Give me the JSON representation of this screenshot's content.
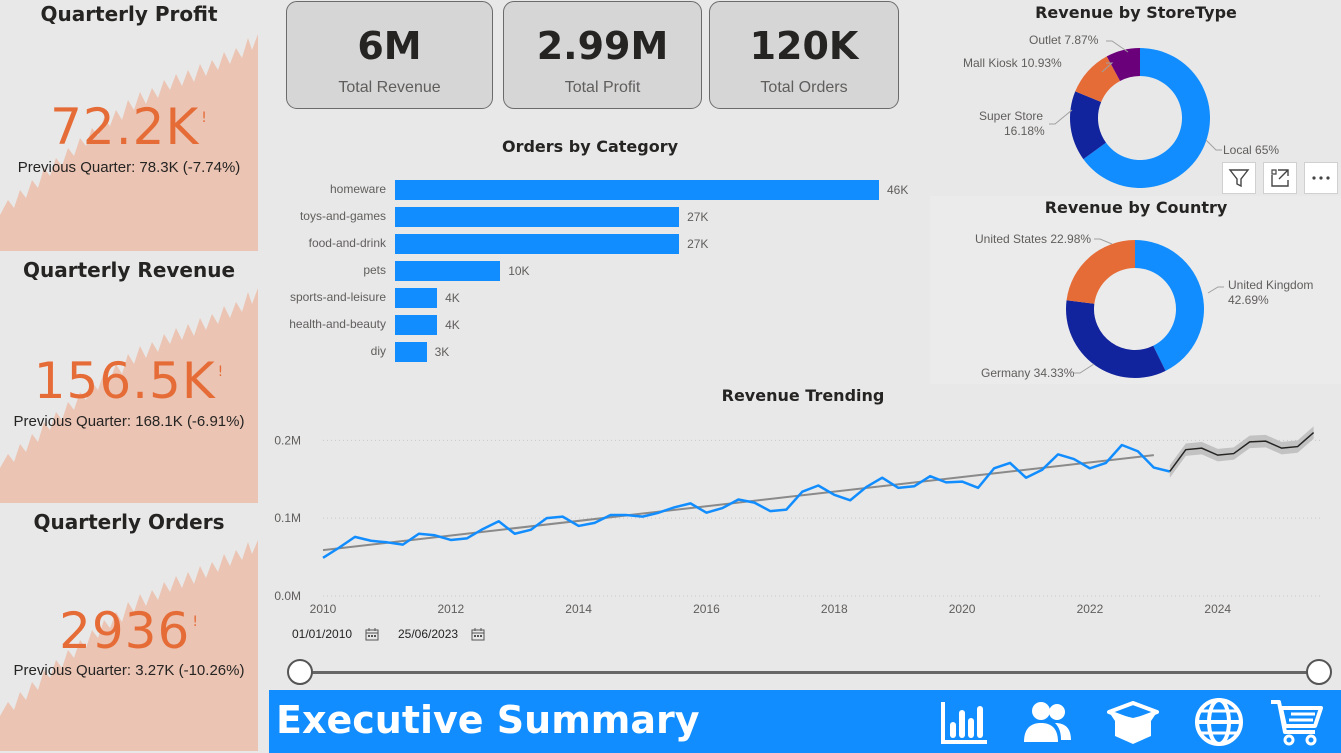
{
  "kpis": [
    {
      "title": "Quarterly Profit",
      "value": "72.2K",
      "indicator": "!",
      "previous": "Previous Quarter: 78.3K (-7.74%)"
    },
    {
      "title": "Quarterly Revenue",
      "value": "156.5K",
      "indicator": "!",
      "previous": "Previous Quarter: 168.1K (-6.91%)"
    },
    {
      "title": "Quarterly Orders",
      "value": "2936",
      "indicator": "!",
      "previous": "Previous Quarter: 3.27K (-10.26%)"
    }
  ],
  "cards": [
    {
      "value": "6M",
      "label": "Total Revenue"
    },
    {
      "value": "2.99M",
      "label": "Total Profit"
    },
    {
      "value": "120K",
      "label": "Total Orders"
    }
  ],
  "footer": {
    "title": "Executive Summary",
    "nav_icons": [
      "bar-chart-icon",
      "users-icon",
      "box-icon",
      "globe-icon",
      "cart-icon"
    ]
  },
  "date_range": {
    "start": "01/01/2010",
    "end": "25/06/2023"
  },
  "colors": {
    "accent": "#118DFF",
    "kpi_orange": "#E66C37",
    "spark_fill": "#EBC4B3",
    "navy": "#12239E",
    "purple": "#6B007B",
    "forecast_band": "#b8b8b8"
  },
  "chart_data": [
    {
      "type": "bar",
      "orientation": "horizontal",
      "title": "Orders by Category",
      "categories": [
        "homeware",
        "toys-and-games",
        "food-and-drink",
        "pets",
        "sports-and-leisure",
        "health-and-beauty",
        "diy"
      ],
      "values": [
        46000,
        27000,
        27000,
        10000,
        4000,
        4000,
        3000
      ],
      "data_labels": [
        "46K",
        "27K",
        "27K",
        "10K",
        "4K",
        "4K",
        "3K"
      ],
      "xlim": [
        0,
        46000
      ]
    },
    {
      "type": "pie",
      "donut": true,
      "title": "Revenue by StoreType",
      "labels": [
        "Local",
        "Super Store",
        "Mall Kiosk",
        "Outlet"
      ],
      "values": [
        65,
        16.18,
        10.93,
        7.87
      ],
      "display_labels": [
        "Local 65%",
        "Super Store 16.18%",
        "Mall Kiosk 10.93%",
        "Outlet 7.87%"
      ],
      "colors": [
        "#118DFF",
        "#12239E",
        "#E66C37",
        "#6B007B"
      ]
    },
    {
      "type": "pie",
      "donut": true,
      "title": "Revenue by Country",
      "labels": [
        "United Kingdom",
        "Germany",
        "United States"
      ],
      "values": [
        42.69,
        34.33,
        22.98
      ],
      "display_labels": [
        "United Kingdom 42.69%",
        "Germany 34.33%",
        "United States 22.98%"
      ],
      "colors": [
        "#118DFF",
        "#12239E",
        "#E66C37"
      ]
    },
    {
      "type": "line",
      "title": "Revenue Trending",
      "x_ticks": [
        "2010",
        "2012",
        "2014",
        "2016",
        "2018",
        "2020",
        "2022",
        "2024"
      ],
      "y_ticks": [
        "0.0M",
        "0.1M",
        "0.2M"
      ],
      "ylim": [
        0,
        0.23
      ],
      "xlim": [
        2010,
        2025.6
      ],
      "series": [
        {
          "role": "actual",
          "x": [
            2010.0,
            2010.25,
            2010.5,
            2010.75,
            2011.0,
            2011.25,
            2011.5,
            2011.75,
            2012.0,
            2012.25,
            2012.5,
            2012.75,
            2013.0,
            2013.25,
            2013.5,
            2013.75,
            2014.0,
            2014.25,
            2014.5,
            2014.75,
            2015.0,
            2015.25,
            2015.5,
            2015.75,
            2016.0,
            2016.25,
            2016.5,
            2016.75,
            2017.0,
            2017.25,
            2017.5,
            2017.75,
            2018.0,
            2018.25,
            2018.5,
            2018.75,
            2019.0,
            2019.25,
            2019.5,
            2019.75,
            2020.0,
            2020.25,
            2020.5,
            2020.75,
            2021.0,
            2021.25,
            2021.5,
            2021.75,
            2022.0,
            2022.25,
            2022.5,
            2022.75,
            2023.0,
            2023.25
          ],
          "y": [
            0.049,
            0.062,
            0.076,
            0.071,
            0.069,
            0.066,
            0.08,
            0.078,
            0.072,
            0.074,
            0.086,
            0.096,
            0.08,
            0.085,
            0.1,
            0.102,
            0.09,
            0.094,
            0.104,
            0.104,
            0.102,
            0.107,
            0.114,
            0.119,
            0.107,
            0.113,
            0.124,
            0.12,
            0.109,
            0.111,
            0.134,
            0.142,
            0.13,
            0.123,
            0.14,
            0.152,
            0.139,
            0.141,
            0.154,
            0.146,
            0.147,
            0.139,
            0.164,
            0.171,
            0.152,
            0.162,
            0.182,
            0.176,
            0.164,
            0.171,
            0.194,
            0.186,
            0.165,
            0.16
          ]
        },
        {
          "role": "trend",
          "x": [
            2010.0,
            2023.0
          ],
          "y": [
            0.059,
            0.181
          ]
        },
        {
          "role": "forecast",
          "x": [
            2023.25,
            2023.5,
            2023.75,
            2024.0,
            2024.25,
            2024.5,
            2024.75,
            2025.0,
            2025.25,
            2025.5
          ],
          "y": [
            0.16,
            0.188,
            0.19,
            0.181,
            0.183,
            0.198,
            0.199,
            0.19,
            0.192,
            0.21
          ],
          "band": 0.008
        }
      ]
    }
  ]
}
